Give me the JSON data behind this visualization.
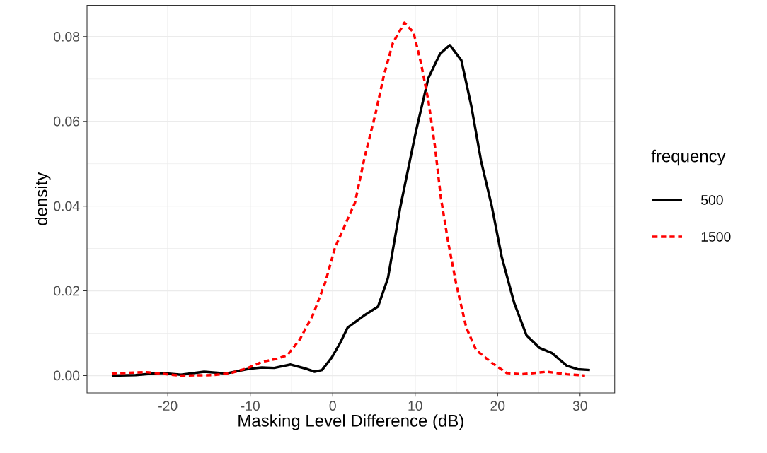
{
  "chart_data": {
    "type": "line",
    "xlabel": "Masking Level Difference (dB)",
    "ylabel": "density",
    "legend_title": "frequency",
    "xlim": [
      -29.8,
      34.2
    ],
    "ylim": [
      -0.0041,
      0.0874
    ],
    "xticks": [
      -20,
      -10,
      0,
      10,
      20,
      30
    ],
    "yticks": [
      {
        "value": 0,
        "label": "0.00"
      },
      {
        "value": 0.02,
        "label": "0.02"
      },
      {
        "value": 0.04,
        "label": "0.04"
      },
      {
        "value": 0.06,
        "label": "0.06"
      },
      {
        "value": 0.08,
        "label": "0.08"
      }
    ],
    "grid": true,
    "legend": "right",
    "series": [
      {
        "name": "500",
        "color": "#000000",
        "line_style": "solid",
        "x": [
          -26.8,
          -23.9,
          -20.9,
          -18.4,
          -15.6,
          -12.9,
          -10.1,
          -8.6,
          -7.1,
          -5.1,
          -3.4,
          -2.2,
          -1.3,
          -0.1,
          0.9,
          1.8,
          3.9,
          5.5,
          6.7,
          8.2,
          10.1,
          11.6,
          13.0,
          14.2,
          15.6,
          16.8,
          18.0,
          19.3,
          20.5,
          22.0,
          23.5,
          25.1,
          26.6,
          28.4,
          29.7,
          31.2
        ],
        "values": [
          0.0,
          0.0001,
          0.0006,
          0.0002,
          0.0009,
          0.0005,
          0.0016,
          0.0019,
          0.0018,
          0.0026,
          0.0017,
          0.0009,
          0.0013,
          0.0043,
          0.0077,
          0.0113,
          0.0143,
          0.0163,
          0.023,
          0.0398,
          0.0577,
          0.0702,
          0.0759,
          0.078,
          0.0744,
          0.0637,
          0.0506,
          0.0399,
          0.028,
          0.0172,
          0.0095,
          0.0065,
          0.0053,
          0.0023,
          0.0015,
          0.0013
        ]
      },
      {
        "name": "1500",
        "color": "#ff0000",
        "line_style": "dashed",
        "x": [
          -26.8,
          -22.6,
          -18.5,
          -14.7,
          -12.5,
          -10.4,
          -8.6,
          -6.7,
          -5.5,
          -4.0,
          -2.4,
          -0.9,
          0.3,
          2.7,
          3.9,
          5.2,
          6.2,
          7.3,
          8.7,
          9.8,
          10.7,
          11.6,
          12.4,
          13.1,
          14.0,
          15.0,
          16.2,
          17.4,
          19.3,
          21.1,
          22.9,
          26.0,
          28.4,
          30.6
        ],
        "values": [
          0.0005,
          0.0008,
          0.0,
          0.0001,
          0.0005,
          0.0017,
          0.0032,
          0.004,
          0.0048,
          0.0085,
          0.0143,
          0.022,
          0.0303,
          0.0408,
          0.0518,
          0.0619,
          0.0708,
          0.0785,
          0.0833,
          0.081,
          0.0738,
          0.0649,
          0.0541,
          0.0422,
          0.0315,
          0.0214,
          0.0113,
          0.006,
          0.003,
          0.0006,
          0.0003,
          0.0009,
          0.0003,
          0.0
        ]
      }
    ]
  }
}
